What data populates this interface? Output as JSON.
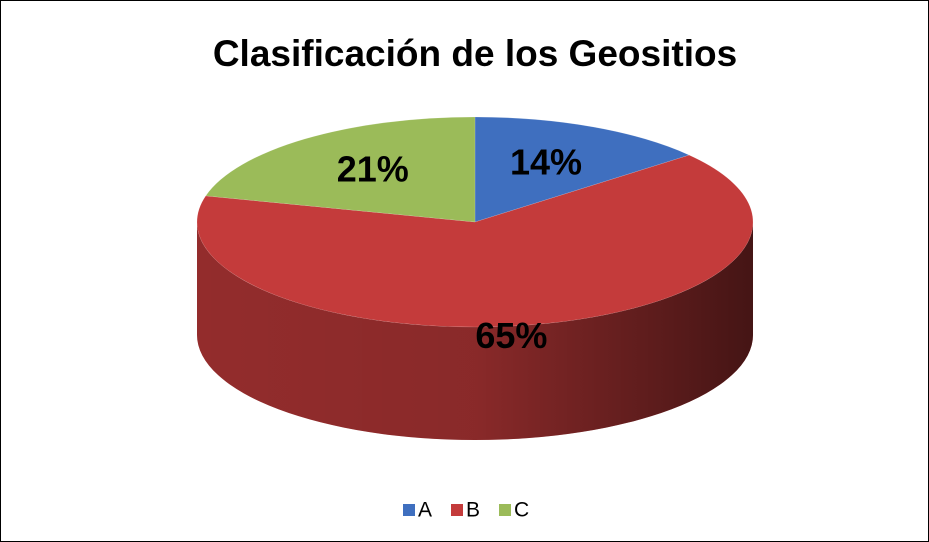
{
  "chart_data": {
    "type": "pie3d",
    "title": "Clasificación de los Geositios",
    "categories": [
      "A",
      "B",
      "C"
    ],
    "values": [
      14,
      65,
      21
    ],
    "value_labels": [
      "14%",
      "65%",
      "21%"
    ],
    "colors": [
      "#3f6fbf",
      "#c43b3b",
      "#9bbb59"
    ],
    "legend": "bottom"
  }
}
